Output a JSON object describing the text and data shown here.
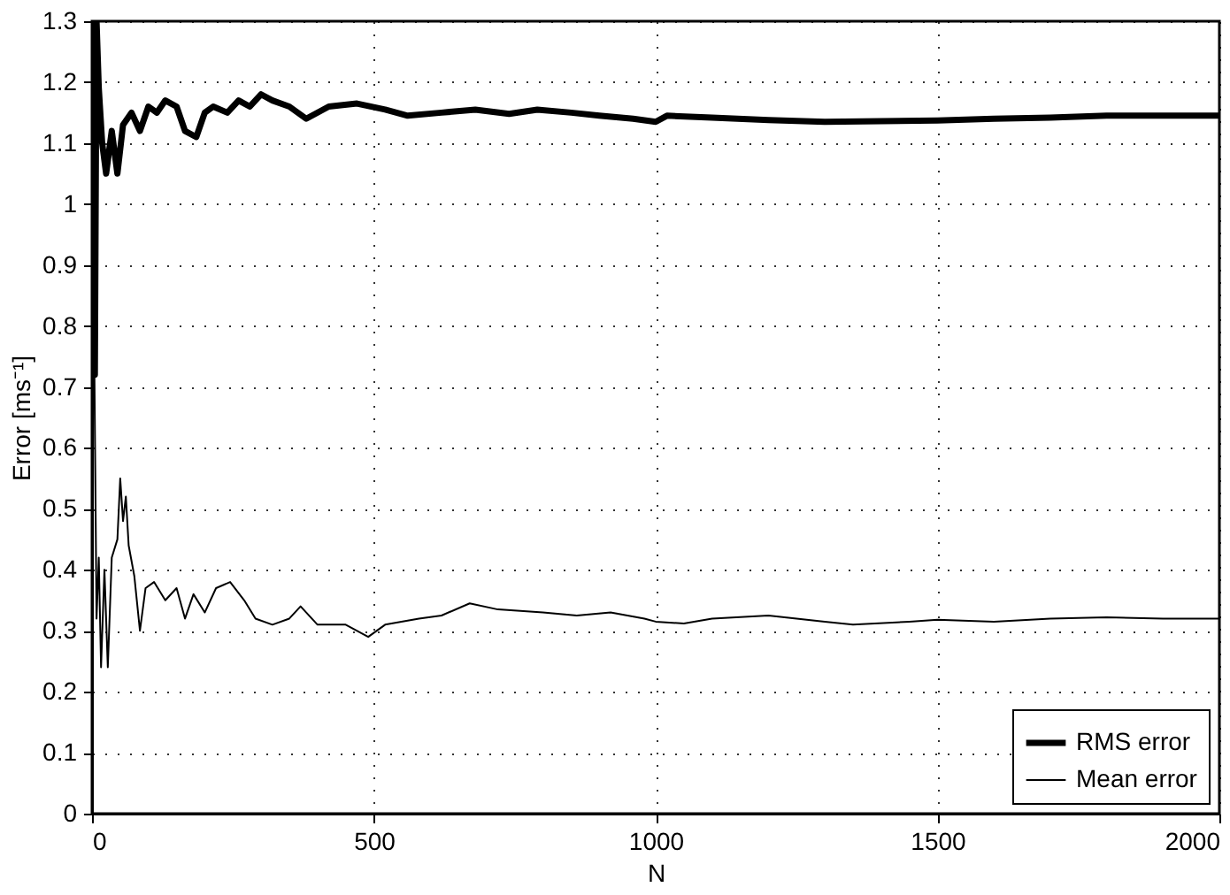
{
  "chart_data": {
    "type": "line",
    "xlabel": "N",
    "ylabel": "Error [ms⁻¹]",
    "xlim": [
      0,
      2000
    ],
    "xticks": [
      0,
      500,
      1000,
      1500,
      2000
    ],
    "ylim": [
      0,
      1.3
    ],
    "yticks": [
      0,
      0.1,
      0.2,
      0.3,
      0.4,
      0.5,
      0.6,
      0.7,
      0.8,
      0.9,
      1,
      1.1,
      1.2,
      1.3
    ],
    "grid": true,
    "legend": "bottom right",
    "line_style": "solid",
    "marker": "none",
    "series": [
      {
        "name": "RMS error",
        "color": "#000000",
        "x": [
          1,
          5,
          8,
          12,
          18,
          25,
          35,
          45,
          55,
          70,
          85,
          100,
          115,
          130,
          150,
          165,
          185,
          200,
          215,
          240,
          260,
          280,
          300,
          320,
          350,
          380,
          420,
          470,
          520,
          560,
          620,
          680,
          740,
          790,
          850,
          900,
          960,
          1000,
          1020,
          1100,
          1200,
          1300,
          1400,
          1500,
          1600,
          1700,
          1800,
          1900,
          2000
        ],
        "values": [
          1.3,
          0.72,
          1.3,
          1.19,
          1.1,
          1.05,
          1.12,
          1.05,
          1.13,
          1.15,
          1.12,
          1.16,
          1.15,
          1.17,
          1.16,
          1.12,
          1.11,
          1.15,
          1.16,
          1.15,
          1.17,
          1.16,
          1.18,
          1.17,
          1.16,
          1.14,
          1.16,
          1.165,
          1.155,
          1.145,
          1.15,
          1.155,
          1.148,
          1.155,
          1.15,
          1.145,
          1.14,
          1.135,
          1.145,
          1.142,
          1.138,
          1.135,
          1.136,
          1.137,
          1.14,
          1.142,
          1.145,
          1.145,
          1.145
        ]
      },
      {
        "name": "Mean error",
        "color": "#000000",
        "x": [
          1,
          4,
          8,
          12,
          16,
          22,
          28,
          35,
          45,
          50,
          55,
          60,
          65,
          75,
          85,
          95,
          110,
          130,
          150,
          165,
          180,
          200,
          220,
          245,
          270,
          290,
          320,
          350,
          370,
          400,
          450,
          490,
          520,
          580,
          620,
          670,
          720,
          800,
          860,
          920,
          980,
          1000,
          1050,
          1100,
          1200,
          1300,
          1350,
          1450,
          1500,
          1600,
          1700,
          1800,
          1900,
          2000
        ],
        "values": [
          1.3,
          0.75,
          0.32,
          0.42,
          0.24,
          0.4,
          0.24,
          0.42,
          0.45,
          0.55,
          0.48,
          0.52,
          0.44,
          0.39,
          0.3,
          0.37,
          0.38,
          0.35,
          0.37,
          0.32,
          0.36,
          0.33,
          0.37,
          0.38,
          0.35,
          0.32,
          0.31,
          0.32,
          0.34,
          0.31,
          0.31,
          0.29,
          0.31,
          0.32,
          0.325,
          0.345,
          0.335,
          0.33,
          0.325,
          0.33,
          0.32,
          0.315,
          0.312,
          0.32,
          0.325,
          0.315,
          0.31,
          0.315,
          0.318,
          0.315,
          0.32,
          0.322,
          0.32,
          0.32
        ]
      }
    ]
  }
}
